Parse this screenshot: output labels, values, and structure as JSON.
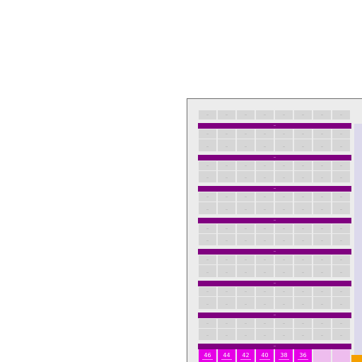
{
  "building": {
    "floor_count": 8,
    "columns_per_floor": 8,
    "rows_per_floor": 3,
    "colors": {
      "panel_background": "#ececec",
      "panel_border": "#6e6e6e",
      "cell": "#d6d6d6",
      "floor_separator": "#800080",
      "unit_active": "#e600e6",
      "unit_inactive": "#eebdee",
      "side_strip": "#dcd9ec",
      "marker": "#f5a000"
    }
  },
  "bottom_row": {
    "units": [
      {
        "label": "46",
        "state": "active"
      },
      {
        "label": "44",
        "state": "active"
      },
      {
        "label": "42",
        "state": "active"
      },
      {
        "label": "40",
        "state": "active"
      },
      {
        "label": "38",
        "state": "active"
      },
      {
        "label": "36",
        "state": "active"
      },
      {
        "label": "",
        "state": "inactive"
      },
      {
        "label": "",
        "state": "inactive"
      }
    ]
  }
}
